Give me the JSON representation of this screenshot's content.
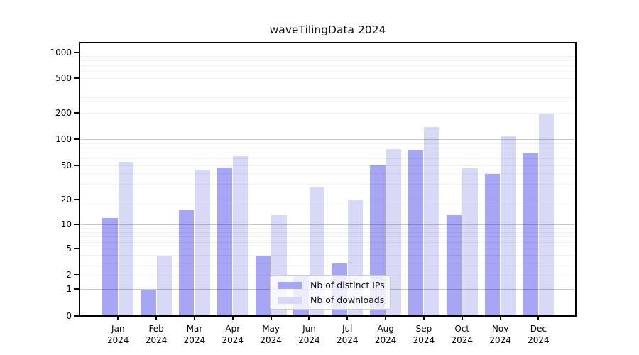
{
  "chart_data": {
    "type": "bar",
    "title": "waveTilingData 2024",
    "categories": [
      "Jan",
      "Feb",
      "Mar",
      "Apr",
      "May",
      "Jun",
      "Jul",
      "Aug",
      "Sep",
      "Oct",
      "Nov",
      "Dec"
    ],
    "x_tick_second_line": "2024",
    "series": [
      {
        "name": "Nb of distinct IPs",
        "color": "#a6a6f4",
        "values": [
          12,
          1,
          15,
          48,
          4,
          2,
          3,
          51,
          77,
          13,
          40,
          70
        ]
      },
      {
        "name": "Nb of downloads",
        "color": "#d8d8f7",
        "values": [
          56,
          4,
          45,
          65,
          13,
          28,
          20,
          78,
          140,
          47,
          110,
          200
        ]
      }
    ],
    "y_ticks": [
      0,
      1,
      2,
      5,
      10,
      20,
      50,
      100,
      200,
      500,
      1000
    ],
    "y_scale": "symlog",
    "ylim": [
      0,
      1300
    ],
    "xlabel": "",
    "ylabel": "",
    "grid": true,
    "legend_position": "lower center"
  },
  "colors": {
    "background": "#ffffff",
    "axis": "#000000",
    "major_grid": "#c7c7c7",
    "minor_grid": "#f1f1f1"
  }
}
